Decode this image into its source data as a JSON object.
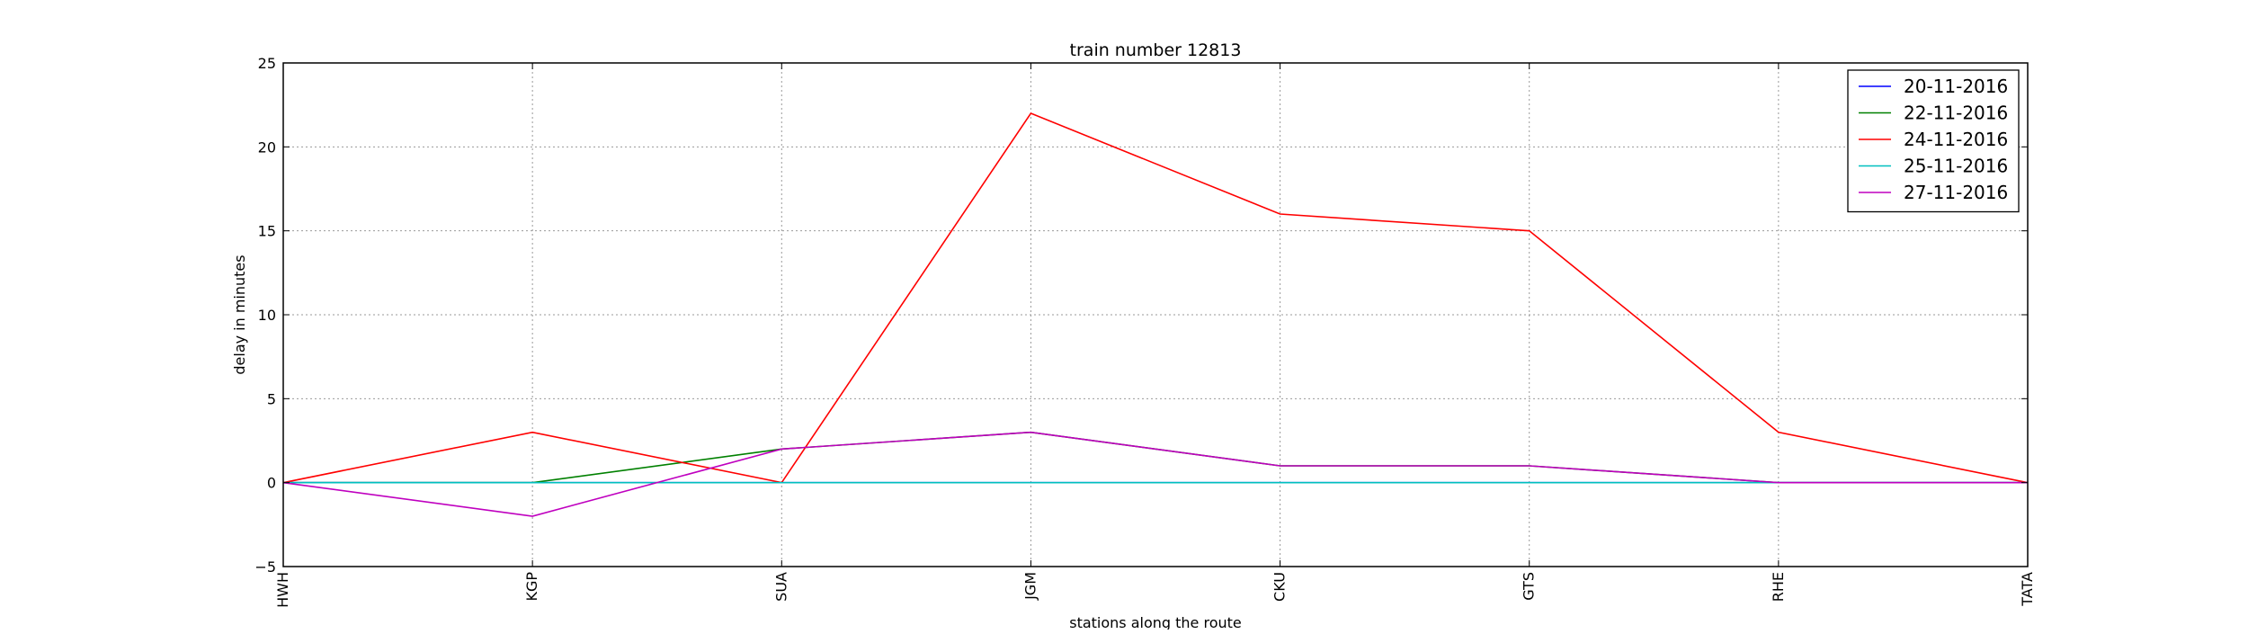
{
  "chart_data": {
    "type": "line",
    "title": "train number 12813",
    "xlabel": "stations along the route",
    "ylabel": "delay in minutes",
    "categories": [
      "HWH",
      "KGP",
      "SUA",
      "JGM",
      "CKU",
      "GTS",
      "RHE",
      "TATA"
    ],
    "ylim": [
      -5,
      25
    ],
    "yticks": [
      -5,
      0,
      5,
      10,
      15,
      20,
      25
    ],
    "grid": true,
    "legend_position": "top-right",
    "series": [
      {
        "name": "20-11-2016",
        "color": "#0000ff",
        "values": [
          0,
          0,
          0,
          0,
          0,
          0,
          0,
          0
        ]
      },
      {
        "name": "22-11-2016",
        "color": "#008000",
        "values": [
          0,
          0,
          2,
          3,
          1,
          1,
          0,
          0
        ]
      },
      {
        "name": "24-11-2016",
        "color": "#ff0000",
        "values": [
          0,
          3,
          0,
          22,
          16,
          15,
          3,
          0
        ]
      },
      {
        "name": "25-11-2016",
        "color": "#00bfbf",
        "values": [
          0,
          0,
          0,
          0,
          0,
          0,
          0,
          0
        ]
      },
      {
        "name": "27-11-2016",
        "color": "#bf00bf",
        "values": [
          0,
          -2,
          2,
          3,
          1,
          1,
          0,
          0
        ]
      }
    ]
  }
}
